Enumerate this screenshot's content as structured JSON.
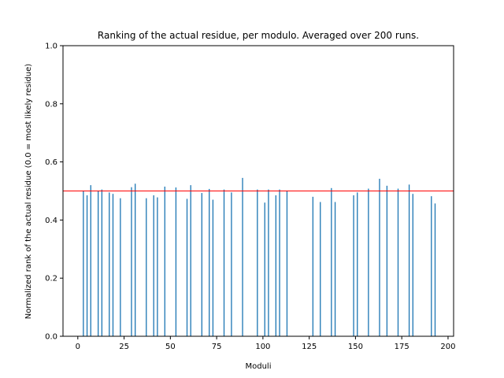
{
  "chart_data": {
    "type": "bar",
    "title": "Ranking of the actual residue, per modulo. Averaged over 200 runs.",
    "xlabel": "Moduli",
    "ylabel": "Normalized rank of the actual residue (0.0 = most likely residue)",
    "xlim": [
      -8,
      203
    ],
    "ylim": [
      0.0,
      1.0
    ],
    "xticks": [
      0,
      25,
      50,
      75,
      100,
      125,
      150,
      175,
      200
    ],
    "xtick_labels": [
      "0",
      "25",
      "50",
      "75",
      "100",
      "125",
      "150",
      "175",
      "200"
    ],
    "yticks": [
      0.0,
      0.2,
      0.4,
      0.6,
      0.8,
      1.0
    ],
    "ytick_labels": [
      "0.0",
      "0.2",
      "0.4",
      "0.6",
      "0.8",
      "1.0"
    ],
    "grid": false,
    "bar_color": "#1f77b4",
    "bar_width": 0.8,
    "reference_line": {
      "y": 0.5,
      "color": "#ff0000"
    },
    "x": [
      3,
      5,
      7,
      11,
      13,
      17,
      19,
      23,
      29,
      31,
      37,
      41,
      43,
      47,
      53,
      59,
      61,
      67,
      71,
      73,
      79,
      83,
      89,
      97,
      101,
      103,
      107,
      109,
      113,
      127,
      131,
      137,
      139,
      149,
      151,
      157,
      163,
      167,
      173,
      179,
      181,
      191,
      193
    ],
    "values": [
      0.5,
      0.485,
      0.52,
      0.5,
      0.505,
      0.495,
      0.49,
      0.475,
      0.513,
      0.525,
      0.475,
      0.485,
      0.478,
      0.515,
      0.512,
      0.473,
      0.52,
      0.493,
      0.507,
      0.47,
      0.505,
      0.495,
      0.545,
      0.505,
      0.46,
      0.505,
      0.485,
      0.505,
      0.5,
      0.48,
      0.462,
      0.51,
      0.462,
      0.485,
      0.495,
      0.508,
      0.542,
      0.518,
      0.508,
      0.522,
      0.49,
      0.482,
      0.457
    ]
  }
}
